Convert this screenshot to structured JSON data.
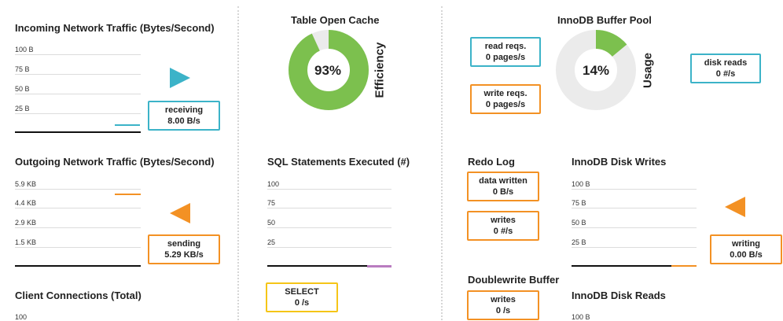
{
  "colors": {
    "teal": "#3cb3c8",
    "orange": "#f39124",
    "green": "#7cc04e",
    "gray": "#ebebeb",
    "purple": "#b97cc0",
    "yellow": "#f5c518"
  },
  "incoming": {
    "title": "Incoming Network Traffic (Bytes/Second)",
    "ticks": [
      "100 B",
      "75 B",
      "50 B",
      "25 B"
    ],
    "box_label": "receiving",
    "box_value": "8.00 B/s",
    "arrow_icon": "play-right-icon"
  },
  "outgoing": {
    "title": "Outgoing Network Traffic (Bytes/Second)",
    "ticks": [
      "5.9 KB",
      "4.4 KB",
      "2.9 KB",
      "1.5 KB"
    ],
    "box_label": "sending",
    "box_value": "5.29 KB/s",
    "arrow_icon": "play-left-icon"
  },
  "client_connections": {
    "title": "Client Connections (Total)",
    "ticks": [
      "100"
    ]
  },
  "table_open_cache": {
    "title": "Table Open Cache",
    "percent": "93%",
    "percent_value": 93,
    "axis_label": "Efficiency"
  },
  "sql_statements": {
    "title": "SQL Statements Executed (#)",
    "ticks": [
      "100",
      "75",
      "50",
      "25"
    ],
    "box_label": "SELECT",
    "box_value": "0 /s"
  },
  "innodb_buffer_pool": {
    "title": "InnoDB Buffer Pool",
    "percent": "14%",
    "percent_value": 14,
    "axis_label": "Usage",
    "read_label": "read reqs.",
    "read_value": "0  pages/s",
    "write_label": "write reqs.",
    "write_value": "0  pages/s",
    "disk_reads_label": "disk reads",
    "disk_reads_value": "0  #/s"
  },
  "redo_log": {
    "title": "Redo Log",
    "data_written_label": "data written",
    "data_written_value": "0 B/s",
    "writes_label": "writes",
    "writes_value": "0 #/s"
  },
  "doublewrite": {
    "title": "Doublewrite Buffer",
    "writes_label": "writes",
    "writes_value": "0 /s"
  },
  "innodb_disk_writes": {
    "title": "InnoDB Disk Writes",
    "ticks": [
      "100 B",
      "75 B",
      "50 B",
      "25 B"
    ],
    "box_label": "writing",
    "box_value": "0.00 B/s",
    "arrow_icon": "play-left-icon"
  },
  "innodb_disk_reads": {
    "title": "InnoDB Disk Reads",
    "ticks": [
      "100 B"
    ]
  }
}
